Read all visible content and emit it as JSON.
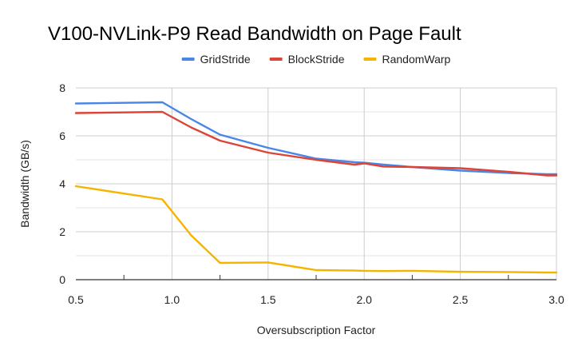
{
  "chart_data": {
    "type": "line",
    "title": "V100-NVLink-P9 Read Bandwidth on Page Fault",
    "xlabel": "Oversubscription Factor",
    "ylabel": "Bandwidth (GB/s)",
    "xlim": [
      0.5,
      3.0
    ],
    "ylim": [
      0,
      8
    ],
    "x_ticks": [
      "0.5",
      "1.0",
      "1.5",
      "2.0",
      "2.5",
      "3.0"
    ],
    "y_ticks": [
      "0",
      "2",
      "4",
      "6",
      "8"
    ],
    "grid": true,
    "legend_position": "top",
    "x": [
      0.5,
      0.95,
      1.1,
      1.25,
      1.5,
      1.75,
      1.95,
      2.0,
      2.1,
      2.25,
      2.5,
      2.75,
      2.95,
      3.0
    ],
    "series": [
      {
        "name": "GridStride",
        "color": "#4a86e8",
        "values": [
          7.35,
          7.4,
          6.7,
          6.05,
          5.5,
          5.05,
          4.9,
          4.88,
          4.8,
          4.7,
          4.55,
          4.45,
          4.4,
          4.4
        ]
      },
      {
        "name": "BlockStride",
        "color": "#db4437",
        "values": [
          6.95,
          7.0,
          6.35,
          5.8,
          5.3,
          5.0,
          4.8,
          4.85,
          4.72,
          4.7,
          4.65,
          4.5,
          4.35,
          4.35
        ]
      },
      {
        "name": "RandomWarp",
        "color": "#f4b400",
        "values": [
          3.9,
          3.35,
          1.85,
          0.7,
          0.72,
          0.4,
          0.38,
          0.37,
          0.36,
          0.37,
          0.33,
          0.32,
          0.3,
          0.3
        ]
      }
    ]
  }
}
